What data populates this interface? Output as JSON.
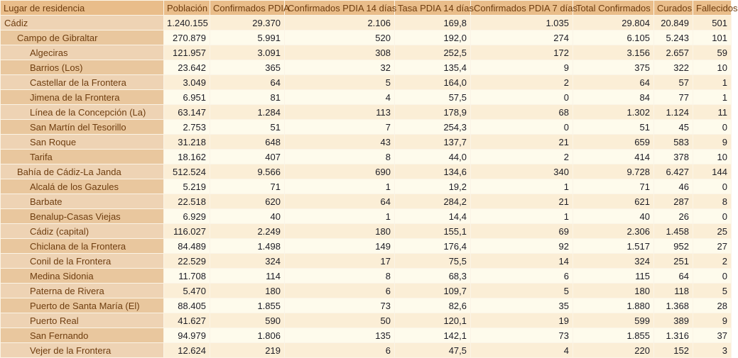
{
  "colors": {
    "header_bg": "#e9bd8a",
    "dim_row_light": "#eed3b4",
    "dim_row_dark": "#e9c79e",
    "data_row_peach": "#fbeed6",
    "data_row_cream": "#fefbec",
    "header_text": "#6e3d0f",
    "value_text": "#1c1c24",
    "grid_line": "#fbf4e6"
  },
  "table": {
    "columns": [
      "Lugar de residencia",
      "Población",
      "Confirmados PDIA",
      "Confirmados PDIA 14 días",
      "Tasa PDIA 14 días",
      "Confirmados PDIA 7 días",
      "Total Confirmados",
      "Curados",
      "Fallecidos"
    ],
    "rows": [
      {
        "label": "Cádiz",
        "level": 0,
        "values": [
          "1.240.155",
          "29.370",
          "2.106",
          "169,8",
          "1.035",
          "29.804",
          "20.849",
          "501"
        ]
      },
      {
        "label": "Campo de Gibraltar",
        "level": 1,
        "values": [
          "270.879",
          "5.991",
          "520",
          "192,0",
          "274",
          "6.105",
          "5.243",
          "101"
        ]
      },
      {
        "label": "Algeciras",
        "level": 2,
        "values": [
          "121.957",
          "3.091",
          "308",
          "252,5",
          "172",
          "3.156",
          "2.657",
          "59"
        ]
      },
      {
        "label": "Barrios (Los)",
        "level": 2,
        "values": [
          "23.642",
          "365",
          "32",
          "135,4",
          "9",
          "375",
          "322",
          "10"
        ]
      },
      {
        "label": "Castellar de la Frontera",
        "level": 2,
        "values": [
          "3.049",
          "64",
          "5",
          "164,0",
          "2",
          "64",
          "57",
          "1"
        ]
      },
      {
        "label": "Jimena de la Frontera",
        "level": 2,
        "values": [
          "6.951",
          "81",
          "4",
          "57,5",
          "0",
          "84",
          "77",
          "1"
        ]
      },
      {
        "label": "Línea de la Concepción (La)",
        "level": 2,
        "values": [
          "63.147",
          "1.284",
          "113",
          "178,9",
          "68",
          "1.302",
          "1.124",
          "11"
        ]
      },
      {
        "label": "San Martín del Tesorillo",
        "level": 2,
        "values": [
          "2.753",
          "51",
          "7",
          "254,3",
          "0",
          "51",
          "45",
          "0"
        ]
      },
      {
        "label": "San Roque",
        "level": 2,
        "values": [
          "31.218",
          "648",
          "43",
          "137,7",
          "21",
          "659",
          "583",
          "9"
        ]
      },
      {
        "label": "Tarifa",
        "level": 2,
        "values": [
          "18.162",
          "407",
          "8",
          "44,0",
          "2",
          "414",
          "378",
          "10"
        ]
      },
      {
        "label": "Bahía de Cádiz-La Janda",
        "level": 1,
        "values": [
          "512.524",
          "9.566",
          "690",
          "134,6",
          "340",
          "9.728",
          "6.427",
          "144"
        ]
      },
      {
        "label": "Alcalá de los Gazules",
        "level": 2,
        "values": [
          "5.219",
          "71",
          "1",
          "19,2",
          "1",
          "71",
          "46",
          "0"
        ]
      },
      {
        "label": "Barbate",
        "level": 2,
        "values": [
          "22.518",
          "620",
          "64",
          "284,2",
          "21",
          "621",
          "287",
          "8"
        ]
      },
      {
        "label": "Benalup-Casas Viejas",
        "level": 2,
        "values": [
          "6.929",
          "40",
          "1",
          "14,4",
          "1",
          "40",
          "26",
          "0"
        ]
      },
      {
        "label": "Cádiz (capital)",
        "level": 2,
        "values": [
          "116.027",
          "2.249",
          "180",
          "155,1",
          "69",
          "2.306",
          "1.458",
          "25"
        ]
      },
      {
        "label": "Chiclana de la Frontera",
        "level": 2,
        "values": [
          "84.489",
          "1.498",
          "149",
          "176,4",
          "92",
          "1.517",
          "952",
          "27"
        ]
      },
      {
        "label": "Conil de la Frontera",
        "level": 2,
        "values": [
          "22.529",
          "324",
          "17",
          "75,5",
          "14",
          "324",
          "251",
          "2"
        ]
      },
      {
        "label": "Medina Sidonia",
        "level": 2,
        "values": [
          "11.708",
          "114",
          "8",
          "68,3",
          "6",
          "115",
          "64",
          "0"
        ]
      },
      {
        "label": "Paterna de Rivera",
        "level": 2,
        "values": [
          "5.470",
          "180",
          "6",
          "109,7",
          "5",
          "180",
          "118",
          "5"
        ]
      },
      {
        "label": "Puerto de Santa María (El)",
        "level": 2,
        "values": [
          "88.405",
          "1.855",
          "73",
          "82,6",
          "35",
          "1.880",
          "1.368",
          "28"
        ]
      },
      {
        "label": "Puerto Real",
        "level": 2,
        "values": [
          "41.627",
          "590",
          "50",
          "120,1",
          "19",
          "599",
          "389",
          "9"
        ]
      },
      {
        "label": "San Fernando",
        "level": 2,
        "values": [
          "94.979",
          "1.806",
          "135",
          "142,1",
          "73",
          "1.855",
          "1.316",
          "37"
        ]
      },
      {
        "label": "Vejer de la Frontera",
        "level": 2,
        "values": [
          "12.624",
          "219",
          "6",
          "47,5",
          "4",
          "220",
          "152",
          "3"
        ]
      }
    ]
  }
}
